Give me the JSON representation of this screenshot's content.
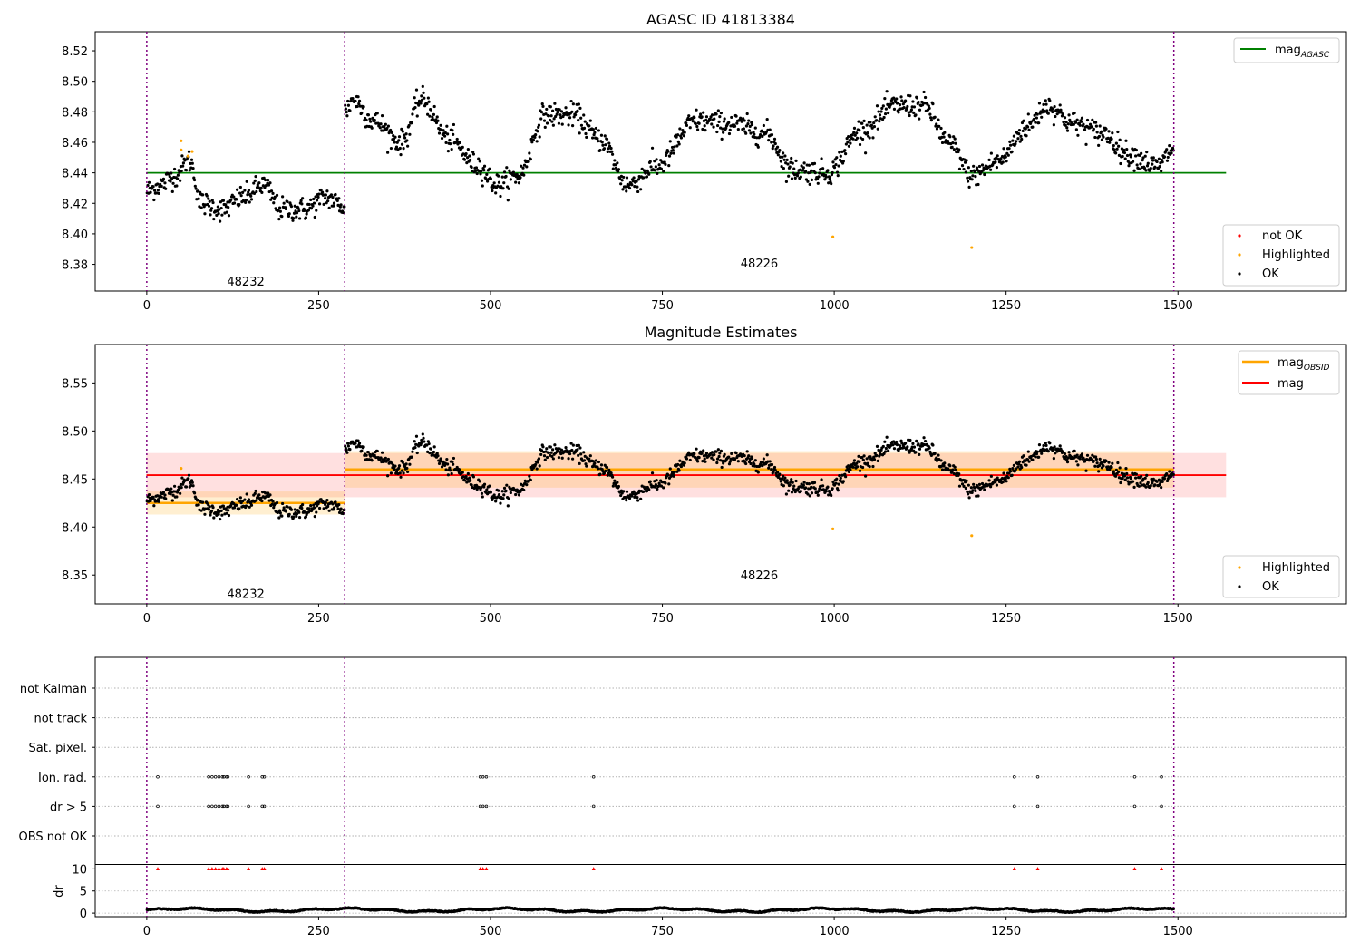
{
  "chart_data": [
    {
      "type": "scatter",
      "title": "AGASC ID 41813384",
      "xlabel": "",
      "ylabel": "",
      "xlim": [
        -75,
        1745
      ],
      "ylim": [
        8.3625,
        8.5325
      ],
      "xticks": [
        0,
        250,
        500,
        750,
        1000,
        1250,
        1500
      ],
      "yticks": [
        8.38,
        8.4,
        8.42,
        8.44,
        8.46,
        8.48,
        8.5,
        8.52
      ],
      "ytick_decimals": 2,
      "obs_boundaries": [
        0,
        288,
        1494
      ],
      "obs_labels": [
        {
          "text": "48232",
          "x": 144,
          "y": 8.369
        },
        {
          "text": "48226",
          "x": 891,
          "y": 8.381
        }
      ],
      "hlines": [
        {
          "name_main": "mag",
          "name_sub": "AGASC",
          "y": 8.44,
          "x": [
            -0.5,
            1570
          ],
          "color": "#008000"
        }
      ],
      "legend_lines": {
        "position": "top-right",
        "entries": [
          {
            "label": "mag",
            "sub": "AGASC",
            "color": "#008000"
          }
        ]
      },
      "legend_points": {
        "position": "lower-right",
        "entries": [
          {
            "label": "not OK",
            "color": "#ff0000"
          },
          {
            "label": "Highlighted",
            "color": "#ffa500"
          },
          {
            "label": "OK",
            "color": "#000000"
          }
        ]
      },
      "highlighted_points": [
        [
          50,
          8.461
        ],
        [
          50,
          8.455
        ],
        [
          60,
          8.451
        ],
        [
          66,
          8.454
        ],
        [
          998,
          8.398
        ],
        [
          1200,
          8.391
        ]
      ],
      "series_model": {
        "segments": [
          {
            "x0": 0,
            "x1": 288,
            "knots": [
              [
                0,
                8.428
              ],
              [
                20,
                8.432
              ],
              [
                40,
                8.438
              ],
              [
                62,
                8.448
              ],
              [
                80,
                8.42
              ],
              [
                110,
                8.416
              ],
              [
                140,
                8.424
              ],
              [
                170,
                8.432
              ],
              [
                195,
                8.416
              ],
              [
                230,
                8.416
              ],
              [
                260,
                8.424
              ],
              [
                288,
                8.418
              ]
            ]
          },
          {
            "x0": 288,
            "x1": 1494,
            "knots": [
              [
                288,
                8.48
              ],
              [
                300,
                8.488
              ],
              [
                330,
                8.474
              ],
              [
                370,
                8.46
              ],
              [
                400,
                8.488
              ],
              [
                440,
                8.462
              ],
              [
                480,
                8.445
              ],
              [
                510,
                8.432
              ],
              [
                540,
                8.438
              ],
              [
                580,
                8.478
              ],
              [
                620,
                8.478
              ],
              [
                660,
                8.462
              ],
              [
                700,
                8.432
              ],
              [
                740,
                8.444
              ],
              [
                800,
                8.474
              ],
              [
                850,
                8.472
              ],
              [
                900,
                8.466
              ],
              [
                940,
                8.442
              ],
              [
                990,
                8.44
              ],
              [
                1040,
                8.468
              ],
              [
                1090,
                8.484
              ],
              [
                1130,
                8.484
              ],
              [
                1170,
                8.458
              ],
              [
                1200,
                8.438
              ],
              [
                1240,
                8.448
              ],
              [
                1280,
                8.47
              ],
              [
                1310,
                8.484
              ],
              [
                1350,
                8.472
              ],
              [
                1390,
                8.466
              ],
              [
                1430,
                8.452
              ],
              [
                1470,
                8.444
              ],
              [
                1494,
                8.456
              ]
            ]
          }
        ],
        "noise": 0.007
      }
    },
    {
      "type": "scatter",
      "title": "Magnitude Estimates",
      "xlabel": "",
      "ylabel": "",
      "xlim": [
        -75,
        1745
      ],
      "ylim": [
        8.32,
        8.59
      ],
      "xticks": [
        0,
        250,
        500,
        750,
        1000,
        1250,
        1500
      ],
      "yticks": [
        8.35,
        8.4,
        8.45,
        8.5,
        8.55
      ],
      "ytick_decimals": 2,
      "obs_boundaries": [
        0,
        288,
        1494
      ],
      "obs_labels": [
        {
          "text": "48232",
          "x": 144,
          "y": 8.331
        },
        {
          "text": "48226",
          "x": 891,
          "y": 8.35
        }
      ],
      "hlines": [
        {
          "name_main": "mag",
          "name_sub": "",
          "y": 8.454,
          "x": [
            -0.5,
            1570
          ],
          "color": "#ff0000",
          "band": [
            8.431,
            8.477
          ],
          "band_color": "rgba(255,0,0,0.12)"
        },
        {
          "name_main": "mag",
          "name_sub": "OBSID",
          "y": 8.425,
          "x": [
            0,
            288
          ],
          "color": "#ffa500",
          "band": [
            8.413,
            8.437
          ],
          "band_color": "rgba(255,165,0,0.18)"
        },
        {
          "name_main": "mag",
          "name_sub": "OBSID",
          "y": 8.46,
          "x": [
            288,
            1494
          ],
          "color": "#ffa500",
          "band": [
            8.441,
            8.479
          ],
          "band_color": "rgba(255,165,0,0.18)"
        }
      ],
      "legend_lines": {
        "position": "top-right",
        "entries": [
          {
            "label": "mag",
            "sub": "OBSID",
            "color": "#ffa500"
          },
          {
            "label": "mag",
            "sub": "",
            "color": "#ff0000"
          }
        ]
      },
      "legend_points": {
        "position": "lower-right",
        "entries": [
          {
            "label": "Highlighted",
            "color": "#ffa500"
          },
          {
            "label": "OK",
            "color": "#000000"
          }
        ]
      },
      "highlighted_points": [
        [
          50,
          8.461
        ],
        [
          998,
          8.398
        ],
        [
          1200,
          8.391
        ]
      ],
      "series_model": "same-as-panel-1"
    },
    {
      "type": "scatter",
      "title": "",
      "xlabel": "",
      "xlim": [
        -75,
        1745
      ],
      "xticks": [
        0,
        250,
        500,
        750,
        1000,
        1250,
        1500
      ],
      "obs_boundaries": [
        0,
        288,
        1494
      ],
      "flag_rows": [
        "not Kalman",
        "not track",
        "Sat. pixel.",
        "Ion. rad.",
        "dr > 5",
        "OBS not OK"
      ],
      "flags": {
        "Ion. rad.": [
          16,
          90,
          95,
          100,
          105,
          110,
          112,
          116,
          118,
          148,
          168,
          171,
          485,
          489,
          494,
          650,
          1262,
          1296,
          1437,
          1476
        ],
        "dr > 5": [
          16,
          90,
          95,
          100,
          105,
          110,
          112,
          116,
          118,
          148,
          168,
          171,
          485,
          489,
          494,
          650,
          1262,
          1296,
          1437,
          1476
        ],
        "OBS not OK": [],
        "Sat. pixel.": [],
        "not track": [],
        "not Kalman": []
      },
      "dr_panel": {
        "ylabel": "dr",
        "yticks": [
          0,
          5,
          10
        ],
        "ylim": [
          -0.8,
          11.0
        ],
        "clipped_value": 10,
        "clipped_x": [
          16,
          90,
          95,
          100,
          105,
          110,
          112,
          116,
          118,
          148,
          168,
          171,
          485,
          489,
          494,
          650,
          1262,
          1296,
          1437,
          1476
        ],
        "typical_dr_range": [
          0.2,
          1.3
        ]
      }
    }
  ],
  "colors": {
    "ok": "#000000",
    "not_ok": "#ff0000",
    "highlighted": "#ffa500",
    "obs_boundary": "#800080",
    "grid": "#b0b0b0"
  }
}
